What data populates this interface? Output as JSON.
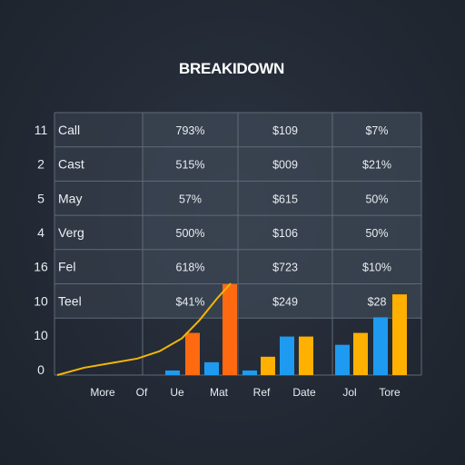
{
  "chart_data": {
    "type": "table",
    "title": "BREAKIDOWN",
    "ranks": [
      "11",
      "2",
      "5",
      "4",
      "16",
      "10",
      "10",
      "0"
    ],
    "rows": [
      {
        "label": "Call",
        "values": [
          "793%",
          "$109",
          "$7%"
        ]
      },
      {
        "label": "Cast",
        "values": [
          "515%",
          "$009",
          "$21%"
        ]
      },
      {
        "label": "May",
        "values": [
          "57%",
          "$615",
          "50%"
        ]
      },
      {
        "label": "Verg",
        "values": [
          "500%",
          "$106",
          "50%"
        ]
      },
      {
        "label": "Fel",
        "values": [
          "618%",
          "$723",
          "$10%"
        ]
      },
      {
        "label": "Teel",
        "values": [
          "$41%",
          "$249",
          "$28"
        ]
      }
    ],
    "x_labels": [
      "More",
      "Of",
      "Ue",
      "Mat",
      "Ref",
      "Date",
      "Jol",
      "Tore"
    ],
    "bars": [
      {
        "color": "#1e9bf0",
        "value": 0.5
      },
      {
        "color": "#ff6a10",
        "value": 4.6
      },
      {
        "color": "#1e9bf0",
        "value": 1.4
      },
      {
        "color": "#ff6a10",
        "value": 9.9
      },
      {
        "color": "#1e9bf0",
        "value": 0.5
      },
      {
        "color": "#ffb000",
        "value": 2.0
      },
      {
        "color": "#1e9bf0",
        "value": 4.2
      },
      {
        "color": "#ffb000",
        "value": 4.2
      },
      {
        "color": "#1e9bf0",
        "value": 3.3
      },
      {
        "color": "#ffb000",
        "value": 4.6
      },
      {
        "color": "#1e9bf0",
        "value": 6.3
      },
      {
        "color": "#ffb000",
        "value": 8.8
      }
    ],
    "curve": {
      "color": "#f2b705",
      "points": [
        [
          0,
          0
        ],
        [
          0.3,
          0.8
        ],
        [
          0.6,
          1.3
        ],
        [
          0.9,
          1.8
        ],
        [
          1.15,
          2.6
        ],
        [
          1.4,
          4.0
        ],
        [
          1.6,
          6.0
        ],
        [
          1.8,
          8.4
        ],
        [
          1.95,
          10.0
        ]
      ]
    },
    "colors": {
      "blue": "#1e9bf0",
      "orange": "#ff6a10",
      "yellow": "#ffb000",
      "grid": "#5f6a78",
      "cell": "#3a4350"
    }
  }
}
